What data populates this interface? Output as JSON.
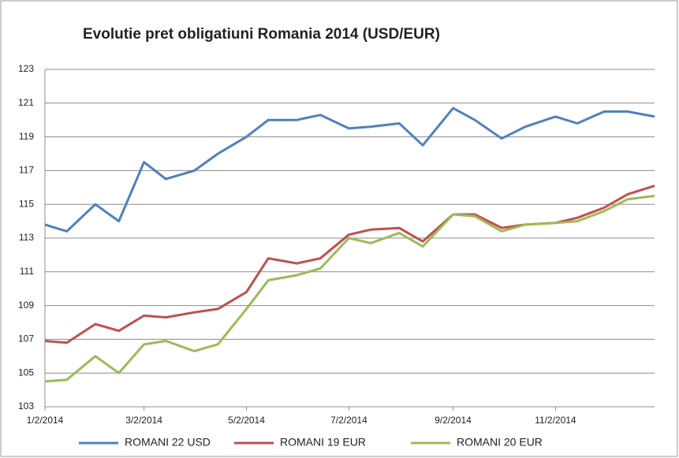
{
  "chart_data": {
    "type": "line",
    "title": "Evolutie pret obligatiuni Romania 2014 (USD/EUR)",
    "x": [
      "2014-01-02",
      "2014-01-15",
      "2014-02-01",
      "2014-02-15",
      "2014-03-02",
      "2014-03-15",
      "2014-04-01",
      "2014-04-15",
      "2014-05-02",
      "2014-05-15",
      "2014-06-01",
      "2014-06-15",
      "2014-07-02",
      "2014-07-15",
      "2014-08-01",
      "2014-08-15",
      "2014-09-02",
      "2014-09-15",
      "2014-10-01",
      "2014-10-15",
      "2014-11-02",
      "2014-11-15",
      "2014-12-01",
      "2014-12-15",
      "2014-12-31"
    ],
    "series": [
      {
        "name": "ROMANI  22 USD",
        "color": "#4f81bd",
        "values": [
          113.8,
          113.4,
          115.0,
          114.0,
          117.5,
          116.5,
          117.0,
          118.0,
          119.0,
          120.0,
          120.0,
          120.3,
          119.5,
          119.6,
          119.8,
          118.5,
          120.7,
          120.0,
          118.9,
          119.6,
          120.2,
          119.8,
          120.5,
          120.5,
          120.2
        ]
      },
      {
        "name": "ROMANI 19 EUR",
        "color": "#c0504d",
        "values": [
          106.9,
          106.8,
          107.9,
          107.5,
          108.4,
          108.3,
          108.6,
          108.8,
          109.8,
          111.8,
          111.5,
          111.8,
          113.2,
          113.5,
          113.6,
          112.8,
          114.4,
          114.4,
          113.6,
          113.8,
          113.9,
          114.2,
          114.8,
          115.6,
          116.1
        ]
      },
      {
        "name": "ROMANI 20 EUR",
        "color": "#9bbb59",
        "values": [
          104.5,
          104.6,
          106.0,
          105.0,
          106.7,
          106.9,
          106.3,
          106.7,
          108.8,
          110.5,
          110.8,
          111.2,
          113.0,
          112.7,
          113.3,
          112.5,
          114.4,
          114.3,
          113.4,
          113.8,
          113.9,
          114.0,
          114.6,
          115.3,
          115.5
        ]
      }
    ],
    "xlim": [
      "2014-01-02",
      "2014-12-31"
    ],
    "xticks": [
      {
        "value": "2014-01-02",
        "label": "1/2/2014"
      },
      {
        "value": "2014-03-02",
        "label": "3/2/2014"
      },
      {
        "value": "2014-05-02",
        "label": "5/2/2014"
      },
      {
        "value": "2014-07-02",
        "label": "7/2/2014"
      },
      {
        "value": "2014-09-02",
        "label": "9/2/2014"
      },
      {
        "value": "2014-11-02",
        "label": "11/2/2014"
      }
    ],
    "ylim": [
      103,
      123
    ],
    "yticks": [
      103,
      105,
      107,
      109,
      111,
      113,
      115,
      117,
      119,
      121,
      123
    ],
    "grid": true,
    "legend": "bottom"
  }
}
